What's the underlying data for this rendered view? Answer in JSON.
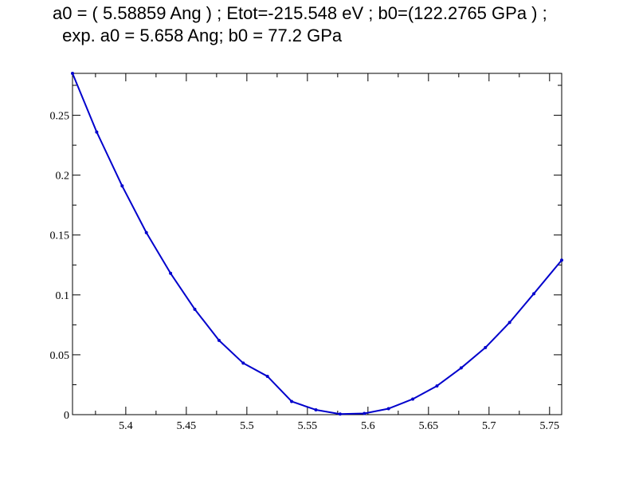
{
  "chart_data": {
    "type": "line",
    "title": "a0 = ( 5.58859 Ang ) ; Etot=-215.548 eV ; b0=(122.2765 GPa ) ;",
    "subtitle": " exp. a0 = 5.658 Ang; b0 = 77.2 GPa",
    "xlabel": "",
    "ylabel": "",
    "xlim": [
      5.356,
      5.76
    ],
    "ylim": [
      0,
      0.285
    ],
    "grid": false,
    "x_ticks": [
      5.4,
      5.45,
      5.5,
      5.55,
      5.6,
      5.65,
      5.7,
      5.75
    ],
    "x_tick_labels": [
      "5.4",
      "5.45",
      "5.5",
      "5.55",
      "5.6",
      "5.65",
      "5.7",
      "5.75"
    ],
    "y_ticks": [
      0,
      0.05,
      0.1,
      0.15,
      0.2,
      0.25
    ],
    "y_tick_labels": [
      "0",
      "0.05",
      "0.1",
      "0.15",
      "0.2",
      "0.25"
    ],
    "series": [
      {
        "color": "#0000cc",
        "x": [
          5.356,
          5.376,
          5.397,
          5.417,
          5.437,
          5.457,
          5.477,
          5.497,
          5.517,
          5.537,
          5.557,
          5.577,
          5.597,
          5.617,
          5.637,
          5.657,
          5.677,
          5.697,
          5.717,
          5.737,
          5.76
        ],
        "y": [
          0.285,
          0.236,
          0.191,
          0.152,
          0.118,
          0.088,
          0.062,
          0.043,
          0.032,
          0.011,
          0.004,
          0.0005,
          0.001,
          0.005,
          0.013,
          0.024,
          0.039,
          0.056,
          0.077,
          0.101,
          0.129
        ]
      }
    ]
  }
}
